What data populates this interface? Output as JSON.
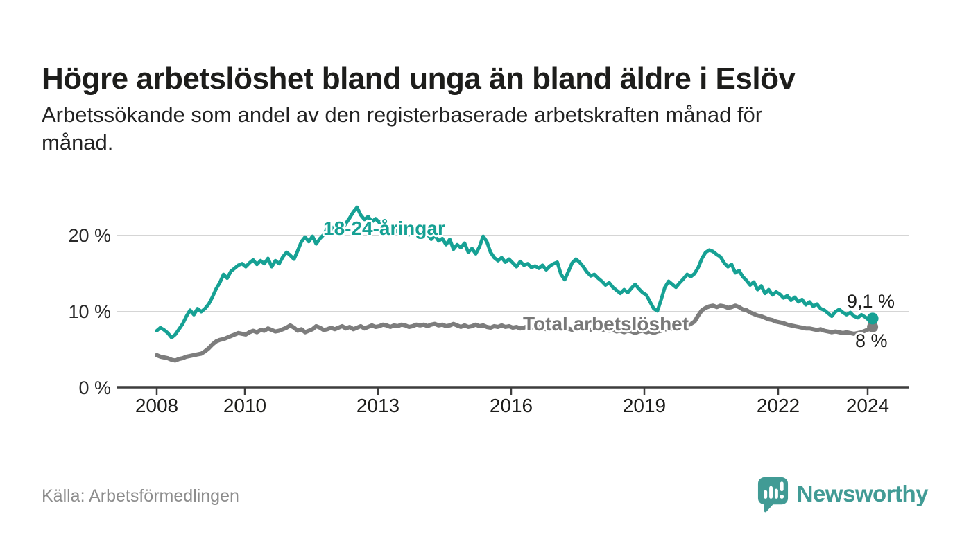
{
  "title": "Högre arbetslöshet bland unga än bland äldre i Eslöv",
  "subtitle": {
    "line1": "Arbetssökande som andel av den registerbaserade arbetskraften månad för",
    "line2": "månad."
  },
  "source": "Källa: Arbetsförmedlingen",
  "branding": {
    "wordmark": "Newsworthy",
    "logo_icon": "speech-bubble-bar-chart-icon"
  },
  "colors": {
    "youth_teal": "#16a194",
    "total_gray": "#7d7d7d",
    "grid": "#d5d5d5",
    "axis": "#3d3d3d",
    "text_dark": "#1d1d1b",
    "text_muted": "#8c8c8c",
    "brand_teal": "#419b95"
  },
  "chart_data": {
    "type": "line",
    "frequency": "monthly",
    "x_range": [
      "2008-01",
      "2024-02"
    ],
    "ylim": [
      0,
      24
    ],
    "grid": "horizontal",
    "legend_position": "inline-labels",
    "y_ticks": [
      "0 %",
      "10 %",
      "20 %"
    ],
    "y_tick_values": [
      0,
      10,
      20
    ],
    "x_ticks": [
      "2008",
      "2010",
      "2013",
      "2016",
      "2019",
      "2022",
      "2024"
    ],
    "series": [
      {
        "name": "18-24-åringar",
        "color": "#16a194",
        "end_label": "9,1 %",
        "end_value": 9.1,
        "values": [
          7.5,
          7.9,
          7.6,
          7.2,
          6.6,
          7.0,
          7.7,
          8.4,
          9.4,
          10.2,
          9.6,
          10.4,
          10.0,
          10.4,
          11.0,
          11.9,
          13.0,
          13.8,
          14.9,
          14.4,
          15.3,
          15.7,
          16.1,
          16.3,
          15.9,
          16.4,
          16.8,
          16.2,
          16.7,
          16.3,
          17.0,
          15.9,
          16.7,
          16.3,
          17.2,
          17.8,
          17.4,
          16.9,
          18.0,
          19.2,
          19.8,
          19.2,
          19.9,
          18.9,
          19.6,
          20.1,
          21.0,
          20.4,
          21.3,
          20.4,
          20.8,
          21.6,
          22.3,
          23.1,
          23.7,
          22.7,
          22.1,
          22.5,
          21.8,
          22.2,
          21.7,
          22.0,
          21.3,
          20.6,
          21.1,
          20.4,
          21.5,
          20.8,
          20.1,
          20.6,
          19.9,
          20.3,
          19.7,
          20.2,
          19.5,
          20.0,
          19.3,
          19.6,
          18.8,
          19.5,
          18.2,
          18.8,
          18.4,
          19.0,
          17.8,
          18.3,
          17.6,
          18.5,
          19.9,
          19.2,
          17.8,
          17.1,
          16.7,
          17.1,
          16.5,
          16.9,
          16.4,
          15.9,
          16.6,
          16.1,
          16.3,
          15.8,
          16.0,
          15.7,
          16.1,
          15.5,
          16.0,
          16.3,
          16.5,
          14.9,
          14.2,
          15.3,
          16.4,
          16.9,
          16.5,
          15.9,
          15.2,
          14.7,
          14.9,
          14.4,
          14.0,
          13.5,
          13.8,
          13.2,
          12.8,
          12.4,
          12.9,
          12.5,
          13.1,
          13.6,
          13.0,
          12.5,
          12.2,
          11.3,
          10.4,
          10.1,
          11.6,
          13.2,
          14.0,
          13.6,
          13.2,
          13.8,
          14.3,
          14.9,
          14.6,
          15.0,
          15.8,
          17.0,
          17.8,
          18.1,
          17.9,
          17.5,
          17.2,
          16.4,
          15.9,
          16.2,
          15.1,
          15.4,
          14.6,
          14.1,
          13.5,
          13.9,
          12.9,
          13.4,
          12.4,
          12.9,
          12.2,
          12.6,
          12.3,
          11.8,
          12.1,
          11.5,
          11.9,
          11.3,
          11.6,
          10.9,
          11.3,
          10.7,
          11.0,
          10.4,
          10.2,
          9.8,
          9.4,
          10.0,
          10.3,
          9.9,
          9.6,
          9.9,
          9.4,
          9.2,
          9.6,
          9.3,
          8.9,
          9.1
        ]
      },
      {
        "name": "Total arbetslöshet",
        "color": "#7d7d7d",
        "end_label": "8 %",
        "end_value": 8.0,
        "values": [
          4.3,
          4.1,
          4.0,
          3.9,
          3.7,
          3.6,
          3.8,
          3.9,
          4.1,
          4.2,
          4.3,
          4.4,
          4.5,
          4.8,
          5.2,
          5.7,
          6.1,
          6.3,
          6.4,
          6.6,
          6.8,
          7.0,
          7.2,
          7.1,
          7.0,
          7.3,
          7.5,
          7.3,
          7.6,
          7.5,
          7.8,
          7.6,
          7.4,
          7.5,
          7.7,
          7.9,
          8.2,
          7.9,
          7.5,
          7.7,
          7.3,
          7.5,
          7.7,
          8.1,
          7.9,
          7.6,
          7.7,
          7.9,
          7.7,
          7.9,
          8.1,
          7.8,
          8.0,
          7.7,
          7.9,
          8.1,
          7.8,
          8.0,
          8.2,
          8.0,
          8.1,
          8.3,
          8.2,
          8.0,
          8.2,
          8.1,
          8.3,
          8.2,
          8.0,
          8.1,
          8.3,
          8.2,
          8.3,
          8.1,
          8.3,
          8.4,
          8.2,
          8.3,
          8.1,
          8.2,
          8.4,
          8.2,
          8.0,
          8.2,
          8.0,
          8.1,
          8.3,
          8.1,
          8.2,
          8.0,
          7.9,
          8.1,
          8.0,
          8.2,
          8.0,
          8.1,
          7.9,
          8.0,
          7.8,
          7.9,
          8.1,
          7.9,
          7.8,
          8.0,
          7.9,
          7.7,
          7.9,
          8.0,
          7.8,
          7.9,
          7.7,
          7.8,
          7.6,
          7.8,
          7.9,
          7.7,
          7.8,
          7.6,
          7.7,
          7.8,
          7.6,
          7.7,
          7.5,
          7.6,
          7.4,
          7.5,
          7.3,
          7.5,
          7.4,
          7.2,
          7.4,
          7.5,
          7.3,
          7.4,
          7.2,
          7.4,
          7.5,
          7.7,
          7.6,
          7.8,
          7.9,
          8.1,
          8.0,
          8.2,
          8.4,
          8.7,
          9.5,
          10.2,
          10.5,
          10.7,
          10.8,
          10.6,
          10.8,
          10.7,
          10.5,
          10.6,
          10.8,
          10.6,
          10.3,
          10.2,
          9.9,
          9.7,
          9.5,
          9.4,
          9.2,
          9.0,
          8.9,
          8.7,
          8.6,
          8.5,
          8.3,
          8.2,
          8.1,
          8.0,
          7.9,
          7.8,
          7.8,
          7.7,
          7.6,
          7.7,
          7.5,
          7.4,
          7.3,
          7.4,
          7.3,
          7.2,
          7.3,
          7.2,
          7.1,
          7.2,
          7.3,
          7.5,
          7.7,
          8.0
        ]
      }
    ]
  }
}
